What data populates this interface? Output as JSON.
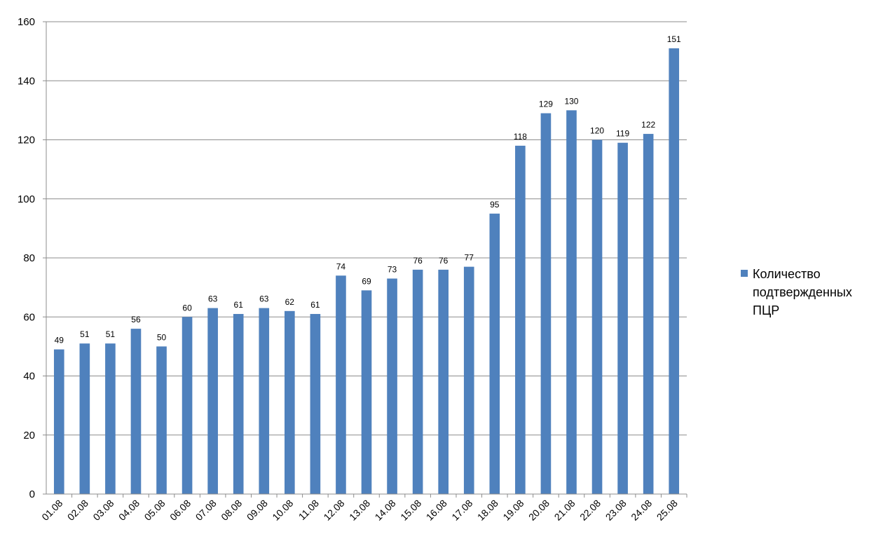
{
  "chart_data": {
    "type": "bar",
    "categories": [
      "01.08",
      "02.08",
      "03.08",
      "04.08",
      "05.08",
      "06.08",
      "07.08",
      "08.08",
      "09.08",
      "10.08",
      "11.08",
      "12.08",
      "13.08",
      "14.08",
      "15.08",
      "16.08",
      "17.08",
      "18.08",
      "19.08",
      "20.08",
      "21.08",
      "22.08",
      "23.08",
      "24.08",
      "25.08"
    ],
    "series": [
      {
        "name": "Количество подтвержденных ПЦР",
        "values": [
          49,
          51,
          51,
          56,
          50,
          60,
          63,
          61,
          63,
          62,
          61,
          74,
          69,
          73,
          76,
          76,
          77,
          95,
          118,
          129,
          130,
          120,
          119,
          122,
          151
        ]
      }
    ],
    "ylim": [
      0,
      160
    ],
    "yticks": [
      0,
      20,
      40,
      60,
      80,
      100,
      120,
      140,
      160
    ],
    "grid": true,
    "legend_position": "right",
    "bar_color": "#4f81bd",
    "data_labels": true
  }
}
